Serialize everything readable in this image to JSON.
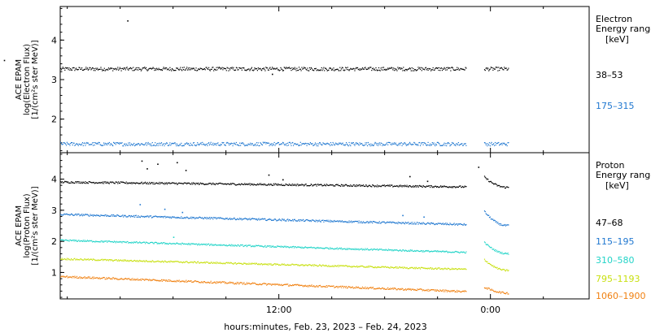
{
  "chart_data": [
    {
      "type": "scatter",
      "panel": "electron",
      "ylabel_lines": [
        "ACE EPAM",
        "log(Electron Flux)",
        "[1/(cm²s ster MeV)]"
      ],
      "yticks": [
        2,
        3,
        4
      ],
      "ylim": [
        1.15,
        4.85
      ],
      "legend_title": [
        "Electron",
        "Energy range"
      ],
      "legend_unit": "[keV]",
      "series": [
        {
          "name": "38–53",
          "color": "#000000",
          "level": 3.28,
          "noise": 0.045,
          "spikes": [
            {
              "t": -15.6,
              "v": 3.5
            },
            {
              "t": -8.6,
              "v": 4.5
            },
            {
              "t": -0.4,
              "v": 3.15
            }
          ]
        },
        {
          "name": "175–315",
          "color": "#1f77d0",
          "level": 1.38,
          "noise": 0.045,
          "spikes": []
        }
      ]
    },
    {
      "type": "scatter",
      "panel": "proton",
      "ylabel_lines": [
        "ACE EPAM",
        "log(Proton Flux)",
        "[1/(cm²s ster MeV)]"
      ],
      "yticks": [
        1,
        2,
        3,
        4
      ],
      "ylim": [
        0.15,
        4.85
      ],
      "legend_title": [
        "Proton",
        "Energy range"
      ],
      "legend_unit": "[keV]",
      "series": [
        {
          "name": "47–68",
          "color": "#000000",
          "start": 3.92,
          "end": 3.75,
          "gapjump": 4.1,
          "noise": 0.03,
          "spikes": [
            {
              "t": -7.8,
              "v": 4.6
            },
            {
              "t": -7.5,
              "v": 4.35
            },
            {
              "t": -6.9,
              "v": 4.5
            },
            {
              "t": -5.8,
              "v": 4.55
            },
            {
              "t": -5.3,
              "v": 4.3
            },
            {
              "t": -0.6,
              "v": 4.15
            },
            {
              "t": 0.2,
              "v": 4.0
            },
            {
              "t": 7.4,
              "v": 4.1
            },
            {
              "t": 8.4,
              "v": 3.95
            },
            {
              "t": 11.3,
              "v": 4.4
            }
          ]
        },
        {
          "name": "115–195",
          "color": "#1f77d0",
          "start": 2.88,
          "end": 2.52,
          "gapjump": 3.0,
          "noise": 0.03,
          "spikes": [
            {
              "t": -7.9,
              "v": 3.2
            },
            {
              "t": -6.5,
              "v": 3.05
            },
            {
              "t": -5.5,
              "v": 2.95
            },
            {
              "t": 7.0,
              "v": 2.85
            },
            {
              "t": 8.2,
              "v": 2.8
            }
          ]
        },
        {
          "name": "310–580",
          "color": "#22d4c8",
          "start": 2.05,
          "end": 1.62,
          "gapjump": 2.0,
          "noise": 0.025,
          "spikes": [
            {
              "t": -6.0,
              "v": 2.15
            }
          ]
        },
        {
          "name": "795–1193",
          "color": "#c8e010",
          "start": 1.45,
          "end": 1.08,
          "gapjump": 1.45,
          "noise": 0.025,
          "spikes": []
        },
        {
          "name": "1060–1900",
          "color": "#f08010",
          "start": 0.88,
          "end": 0.35,
          "gapjump": 0.55,
          "noise": 0.03,
          "spikes": []
        }
      ]
    }
  ],
  "x_axis": {
    "ticks": [
      {
        "t": 0,
        "label": "12:00"
      },
      {
        "t": 12,
        "label": "0:00"
      }
    ],
    "minor_every_hours": 3,
    "range_hours": [
      -12.4,
      17.6
    ],
    "data_range_hours": [
      -12.4,
      13.0
    ],
    "gap_hours": [
      10.6,
      11.6
    ],
    "xlabel": "hours:minutes, Feb. 23, 2023 – Feb. 24, 2023"
  }
}
